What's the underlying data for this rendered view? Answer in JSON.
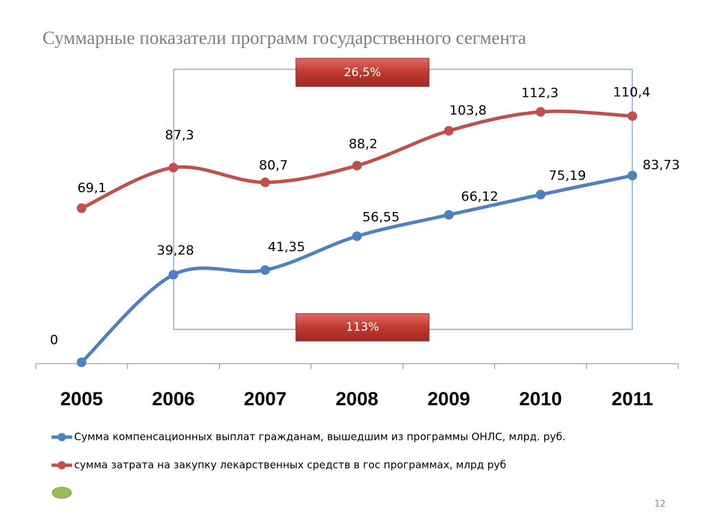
{
  "title": "Суммарные показатели программ государственного сегмента",
  "page_number": "12",
  "chart_data": {
    "type": "line",
    "categories": [
      "2005",
      "2006",
      "2007",
      "2008",
      "2009",
      "2010",
      "2011"
    ],
    "series": [
      {
        "name": "Сумма компенсационных выплат гражданам, вышедшим из программы ОНЛС, млрд. руб.",
        "color": "#4f81bd",
        "values": [
          0,
          39.28,
          41.35,
          56.55,
          66.12,
          75.19,
          83.73
        ],
        "value_labels": [
          "0",
          "39,28",
          "41,35",
          "56,55",
          "66,12",
          "75,19",
          "83,73"
        ]
      },
      {
        "name": "сумма затрата на закупку лекарственных средств в гос программах, млрд руб",
        "color": "#c0504d",
        "values": [
          69.1,
          87.3,
          80.7,
          88.2,
          103.8,
          112.3,
          110.4
        ],
        "value_labels": [
          "69,1",
          "87,3",
          "80,7",
          "88,2",
          "103,8",
          "112,3",
          "110,4"
        ]
      }
    ],
    "ylim": [
      0,
      120
    ],
    "annotations": [
      "26,5%",
      "113%"
    ]
  }
}
